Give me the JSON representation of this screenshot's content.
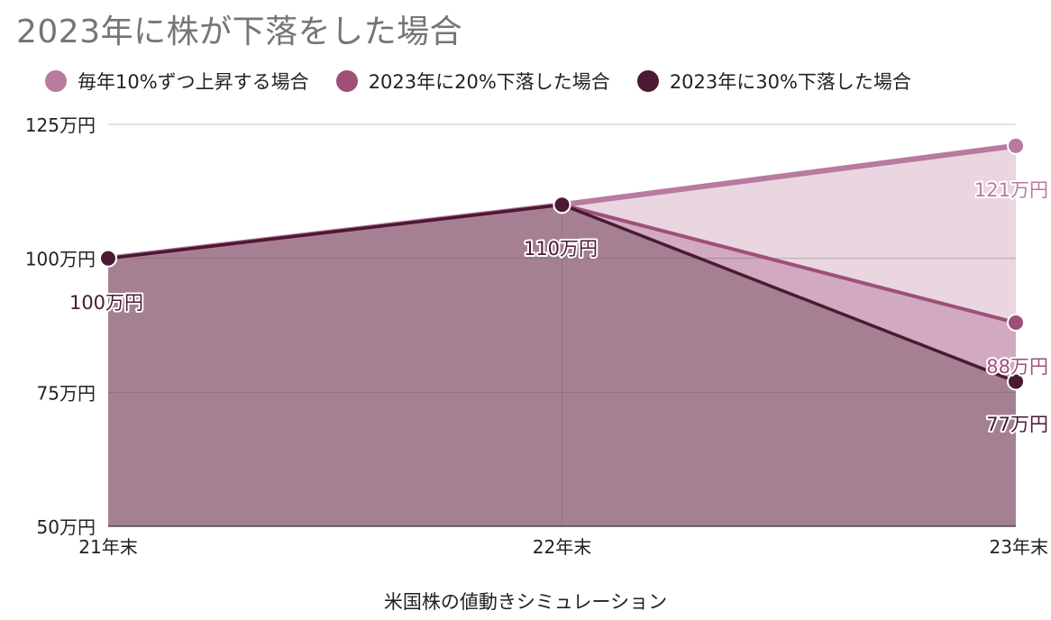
{
  "title": "2023年に株が下落をした場合",
  "chart_data": {
    "type": "area",
    "title": "2023年に株が下落をした場合",
    "xlabel": "米国株の値動きシミュレーション",
    "ylabel": "",
    "x": [
      "21年末",
      "22年末",
      "23年末"
    ],
    "ylim": [
      50,
      125
    ],
    "y_ticks": [
      50,
      75,
      100,
      125
    ],
    "y_tick_labels": [
      "50万円",
      "75万円",
      "100万円",
      "125万円"
    ],
    "grid": true,
    "legend_position": "top-left",
    "series": [
      {
        "name": "毎年10%ずつ上昇する場合",
        "values": [
          100,
          110,
          121
        ],
        "color": "#b87a9e",
        "fill_color": "#e9d6e1",
        "data_labels": [
          "",
          "",
          "121万円"
        ]
      },
      {
        "name": "2023年に20%下落した場合",
        "values": [
          100,
          110,
          88
        ],
        "color": "#9e5077",
        "fill_color": "#d1a9c1",
        "data_labels": [
          "",
          "",
          "88万円"
        ]
      },
      {
        "name": "2023年に30%下落した場合",
        "values": [
          100,
          110,
          77
        ],
        "color": "#4a1a33",
        "fill_color": "#a58093",
        "data_labels": [
          "100万円",
          "110万円",
          "77万円"
        ]
      }
    ]
  }
}
